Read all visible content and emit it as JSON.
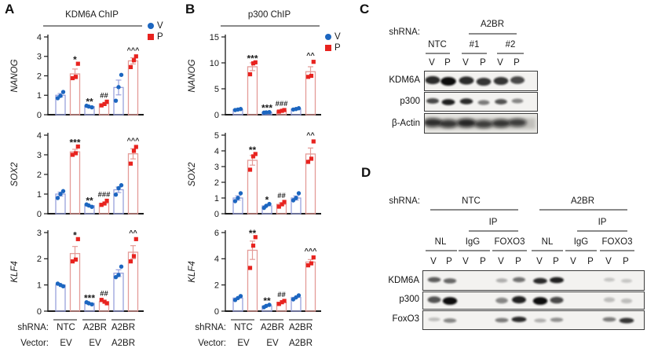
{
  "colors": {
    "v_point": "#1c66c0",
    "p_point": "#e8231f",
    "v_bar_outline": "#98a0dc",
    "p_bar_outline": "#e49b97",
    "axis": "#1a1a1a",
    "sig": "#1a1a1a"
  },
  "chart_data": [
    {
      "panel": "A",
      "title": "KDM6A ChIP",
      "type": "bar",
      "legend": [
        {
          "label": "V",
          "marker": "circle",
          "color": "#1c66c0"
        },
        {
          "label": "P",
          "marker": "square",
          "color": "#e8231f"
        }
      ],
      "row_labels": {
        "shRNA": "shRNA:",
        "Vector": "Vector:"
      },
      "x_groups": [
        {
          "shRNA": "NTC",
          "Vector": "EV"
        },
        {
          "shRNA": "A2BR",
          "Vector": "EV"
        },
        {
          "shRNA": "A2BR",
          "Vector": "A2BR"
        }
      ],
      "subplots": [
        {
          "ylabel": "NANOG",
          "ylim": [
            0,
            4
          ],
          "yticks": [
            0,
            1,
            2,
            3,
            4
          ],
          "bars": [
            {
              "series": "V",
              "mean": 1.0,
              "sem": 0.09,
              "points": [
                0.85,
                0.97,
                1.17
              ],
              "sig": ""
            },
            {
              "series": "P",
              "mean": 2.1,
              "sem": 0.25,
              "points": [
                1.88,
                1.95,
                2.62
              ],
              "sig": "*"
            },
            {
              "series": "V",
              "mean": 0.42,
              "sem": 0.03,
              "points": [
                0.46,
                0.42,
                0.38
              ],
              "sig": "**"
            },
            {
              "series": "P",
              "mean": 0.56,
              "sem": 0.06,
              "points": [
                0.48,
                0.55,
                0.67
              ],
              "sig": "##"
            },
            {
              "series": "V",
              "mean": 1.4,
              "sem": 0.38,
              "points": [
                0.72,
                1.42,
                2.05
              ],
              "sig": ""
            },
            {
              "series": "P",
              "mean": 2.77,
              "sem": 0.16,
              "points": [
                2.45,
                2.8,
                3.0
              ],
              "sig": "^^^"
            }
          ]
        },
        {
          "ylabel": "SOX2",
          "ylim": [
            0,
            4
          ],
          "yticks": [
            0,
            1,
            2,
            3,
            4
          ],
          "bars": [
            {
              "series": "V",
              "mean": 1.0,
              "sem": 0.1,
              "points": [
                0.8,
                1.0,
                1.15
              ],
              "sig": ""
            },
            {
              "series": "P",
              "mean": 3.15,
              "sem": 0.13,
              "points": [
                3.0,
                3.08,
                3.42
              ],
              "sig": "***"
            },
            {
              "series": "V",
              "mean": 0.41,
              "sem": 0.04,
              "points": [
                0.47,
                0.42,
                0.35
              ],
              "sig": "**"
            },
            {
              "series": "P",
              "mean": 0.53,
              "sem": 0.06,
              "points": [
                0.45,
                0.52,
                0.66
              ],
              "sig": "###"
            },
            {
              "series": "V",
              "mean": 1.22,
              "sem": 0.14,
              "points": [
                0.97,
                1.3,
                1.45
              ],
              "sig": ""
            },
            {
              "series": "P",
              "mean": 3.05,
              "sem": 0.26,
              "points": [
                2.55,
                3.2,
                3.4
              ],
              "sig": "^^^"
            }
          ]
        },
        {
          "ylabel": "KLF4",
          "ylim": [
            0,
            3
          ],
          "yticks": [
            0,
            1,
            2,
            3
          ],
          "bars": [
            {
              "series": "V",
              "mean": 1.0,
              "sem": 0.03,
              "points": [
                1.05,
                1.0,
                0.95
              ],
              "sig": ""
            },
            {
              "series": "P",
              "mean": 2.2,
              "sem": 0.27,
              "points": [
                1.9,
                1.97,
                2.75
              ],
              "sig": "*"
            },
            {
              "series": "V",
              "mean": 0.3,
              "sem": 0.03,
              "points": [
                0.34,
                0.3,
                0.26
              ],
              "sig": "***"
            },
            {
              "series": "P",
              "mean": 0.36,
              "sem": 0.04,
              "points": [
                0.43,
                0.36,
                0.3
              ],
              "sig": "##"
            },
            {
              "series": "V",
              "mean": 1.45,
              "sem": 0.13,
              "points": [
                1.3,
                1.38,
                1.7
              ],
              "sig": ""
            },
            {
              "series": "P",
              "mean": 2.25,
              "sem": 0.25,
              "points": [
                1.9,
                2.1,
                2.75
              ],
              "sig": "^^"
            }
          ]
        }
      ]
    },
    {
      "panel": "B",
      "title": "p300 ChIP",
      "type": "bar",
      "legend": [
        {
          "label": "V",
          "marker": "circle",
          "color": "#1c66c0"
        },
        {
          "label": "P",
          "marker": "square",
          "color": "#e8231f"
        }
      ],
      "row_labels": {
        "shRNA": "shRNA:",
        "Vector": "Vector:"
      },
      "x_groups": [
        {
          "shRNA": "NTC",
          "Vector": "EV"
        },
        {
          "shRNA": "A2BR",
          "Vector": "EV"
        },
        {
          "shRNA": "A2BR",
          "Vector": "A2BR"
        }
      ],
      "subplots": [
        {
          "ylabel": "NANOG",
          "ylim": [
            0,
            15
          ],
          "yticks": [
            0,
            5,
            10,
            15
          ],
          "bars": [
            {
              "series": "V",
              "mean": 1.0,
              "sem": 0.06,
              "points": [
                0.9,
                1.0,
                1.1
              ],
              "sig": ""
            },
            {
              "series": "P",
              "mean": 9.25,
              "sem": 0.75,
              "points": [
                7.8,
                9.9,
                10.1
              ],
              "sig": "***"
            },
            {
              "series": "V",
              "mean": 0.45,
              "sem": 0.04,
              "points": [
                0.4,
                0.45,
                0.5
              ],
              "sig": "***"
            },
            {
              "series": "P",
              "mean": 0.75,
              "sem": 0.1,
              "points": [
                0.6,
                0.75,
                0.9
              ],
              "sig": "###"
            },
            {
              "series": "V",
              "mean": 1.1,
              "sem": 0.08,
              "points": [
                1.0,
                1.1,
                1.25
              ],
              "sig": ""
            },
            {
              "series": "P",
              "mean": 8.3,
              "sem": 0.95,
              "points": [
                7.3,
                7.5,
                10.2
              ],
              "sig": "^^"
            }
          ]
        },
        {
          "ylabel": "SOX2",
          "ylim": [
            0,
            5
          ],
          "yticks": [
            0,
            1,
            2,
            3,
            4,
            5
          ],
          "bars": [
            {
              "series": "V",
              "mean": 1.0,
              "sem": 0.14,
              "points": [
                0.8,
                1.0,
                1.3
              ],
              "sig": ""
            },
            {
              "series": "P",
              "mean": 3.4,
              "sem": 0.31,
              "points": [
                2.8,
                3.65,
                3.8
              ],
              "sig": "**"
            },
            {
              "series": "V",
              "mean": 0.5,
              "sem": 0.07,
              "points": [
                0.37,
                0.5,
                0.62
              ],
              "sig": "*"
            },
            {
              "series": "P",
              "mean": 0.6,
              "sem": 0.09,
              "points": [
                0.45,
                0.6,
                0.75
              ],
              "sig": "##"
            },
            {
              "series": "V",
              "mean": 1.0,
              "sem": 0.13,
              "points": [
                0.85,
                1.0,
                1.3
              ],
              "sig": ""
            },
            {
              "series": "P",
              "mean": 3.8,
              "sem": 0.38,
              "points": [
                3.3,
                3.5,
                4.6
              ],
              "sig": "^^"
            }
          ]
        },
        {
          "ylabel": "KLF4",
          "ylim": [
            0,
            6
          ],
          "yticks": [
            0,
            2,
            4,
            6
          ],
          "bars": [
            {
              "series": "V",
              "mean": 1.0,
              "sem": 0.09,
              "points": [
                0.85,
                1.0,
                1.15
              ],
              "sig": ""
            },
            {
              "series": "P",
              "mean": 4.65,
              "sem": 0.7,
              "points": [
                3.3,
                5.0,
                5.65
              ],
              "sig": "**"
            },
            {
              "series": "V",
              "mean": 0.4,
              "sem": 0.05,
              "points": [
                0.3,
                0.4,
                0.48
              ],
              "sig": "**"
            },
            {
              "series": "P",
              "mean": 0.68,
              "sem": 0.07,
              "points": [
                0.55,
                0.68,
                0.78
              ],
              "sig": "##"
            },
            {
              "series": "V",
              "mean": 1.05,
              "sem": 0.09,
              "points": [
                0.9,
                1.05,
                1.2
              ],
              "sig": ""
            },
            {
              "series": "P",
              "mean": 3.75,
              "sem": 0.19,
              "points": [
                3.5,
                3.65,
                4.1
              ],
              "sig": "^^^"
            }
          ]
        }
      ]
    }
  ],
  "blots": {
    "c": {
      "letter": "C",
      "shrna_label": "shRNA:",
      "top_group": "A2BR",
      "groups": [
        "NTC",
        "#1",
        "#2"
      ],
      "lane_labels": [
        "V",
        "P",
        "V",
        "P",
        "V",
        "P"
      ],
      "rows": [
        {
          "label": "KDM6A",
          "bands": [
            0.85,
            1.0,
            0.85,
            0.8,
            0.8,
            0.7
          ]
        },
        {
          "label": "p300",
          "bands": [
            0.7,
            0.9,
            0.85,
            0.45,
            0.65,
            0.4
          ]
        },
        {
          "label": "β-Actin",
          "bands": [
            0.8,
            0.75,
            0.85,
            0.7,
            0.75,
            0.7
          ]
        }
      ]
    },
    "d": {
      "letter": "D",
      "shrna_label": "shRNA:",
      "top_groups": [
        "NTC",
        "A2BR"
      ],
      "ip_label": "IP",
      "sub_groups": [
        "NL",
        "IgG",
        "FOXO3",
        "NL",
        "IgG",
        "FOXO3"
      ],
      "lane_labels": [
        "V",
        "P",
        "V",
        "P",
        "V",
        "P",
        "V",
        "P",
        "V",
        "P",
        "V",
        "P"
      ],
      "rows": [
        {
          "label": "KDM6A",
          "bands": [
            0.6,
            0.55,
            0,
            0,
            0.2,
            0.5,
            0.85,
            0.9,
            0,
            0,
            0.08,
            0.08
          ]
        },
        {
          "label": "p300",
          "bands": [
            0.65,
            1.0,
            0,
            0,
            0.4,
            0.9,
            1.0,
            0.7,
            0,
            0,
            0.12,
            0.12
          ]
        },
        {
          "label": "FoxO3",
          "bands": [
            0.12,
            0.4,
            0,
            0,
            0.45,
            0.85,
            0.2,
            0.35,
            0,
            0,
            0.45,
            0.8
          ]
        }
      ]
    }
  }
}
